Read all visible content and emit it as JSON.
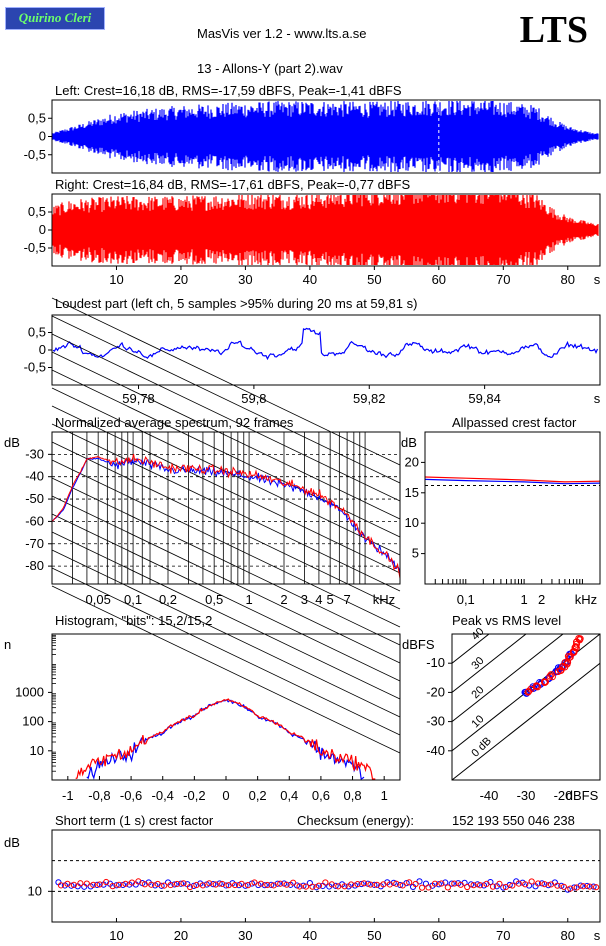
{
  "header": {
    "badge_text": "Quirino Cleri",
    "app_title": "MasVis ver 1.2 - www.lts.a.se",
    "logo": "LTS",
    "file_title": "13 - Allons-Y (part 2).wav"
  },
  "colors": {
    "left": "#0000ff",
    "right": "#ff0000",
    "background": "#ffffff",
    "badge": "#2b45b0",
    "badge_text": "#6cff6c"
  },
  "chart_data": [
    {
      "id": "left-waveform",
      "type": "line",
      "title": "Left: Crest=16,18 dB, RMS=-17,59 dBFS, Peak=-1,41 dBFS",
      "y_ticks": [
        "0,5",
        "0",
        "-0,5"
      ],
      "ylim": [
        -1,
        1
      ],
      "xlim": [
        0,
        85
      ],
      "series": [
        {
          "channel": "left",
          "envelope_x": [
            0,
            5,
            10,
            20,
            30,
            40,
            50,
            60,
            70,
            75,
            78,
            80,
            84
          ],
          "envelope_amp": [
            0.05,
            0.2,
            0.35,
            0.45,
            0.5,
            0.52,
            0.5,
            0.55,
            0.52,
            0.45,
            0.25,
            0.15,
            0.05
          ]
        }
      ],
      "marker_x": 60
    },
    {
      "id": "right-waveform",
      "type": "line",
      "title": "Right: Crest=16,84 dB, RMS=-17,61 dBFS, Peak=-0,77 dBFS",
      "y_ticks": [
        "0,5",
        "0",
        "-0,5"
      ],
      "ylim": [
        -1,
        1
      ],
      "xlim": [
        0,
        85
      ],
      "x_ticks": [
        "10",
        "20",
        "30",
        "40",
        "50",
        "60",
        "70",
        "80"
      ],
      "x_unit": "s",
      "series": [
        {
          "channel": "right",
          "envelope_x": [
            0,
            3,
            10,
            20,
            30,
            40,
            50,
            60,
            70,
            75,
            78,
            80,
            84
          ],
          "envelope_amp": [
            0.35,
            0.45,
            0.5,
            0.5,
            0.55,
            0.55,
            0.65,
            0.7,
            0.7,
            0.55,
            0.3,
            0.2,
            0.1
          ]
        }
      ]
    },
    {
      "id": "loudest-part",
      "type": "line",
      "title": "Loudest part (left  ch, 5 samples >95% during 20 ms at 59,81 s)",
      "y_ticks": [
        "0,5",
        "0",
        "-0,5"
      ],
      "ylim": [
        -1,
        1
      ],
      "xlim": [
        59.765,
        59.86
      ],
      "x_ticks": [
        "59,78",
        "59,8",
        "59,82",
        "59,84"
      ],
      "x_unit": "s",
      "series": [
        {
          "channel": "left"
        }
      ]
    },
    {
      "id": "spectrum",
      "type": "line",
      "title": "Normalized average spectrum, 92 frames",
      "y_unit": "dB",
      "y_ticks": [
        "-30",
        "-40",
        "-50",
        "-60",
        "-70",
        "-80"
      ],
      "ylim": [
        -88,
        -20
      ],
      "x_ticks": [
        "0,05",
        "0,1",
        "0,2",
        "0,5",
        "1",
        "2",
        "3",
        "4",
        "5",
        "7"
      ],
      "x_unit": "kHz",
      "x_scale": "log",
      "xlim": [
        0.02,
        20
      ],
      "series": [
        {
          "channel": "left",
          "x": [
            0.02,
            0.025,
            0.03,
            0.04,
            0.05,
            0.07,
            0.1,
            0.2,
            0.5,
            1,
            2,
            4,
            7,
            10,
            15,
            20
          ],
          "y": [
            -60,
            -55,
            -45,
            -32,
            -32,
            -35,
            -33,
            -37,
            -38,
            -40,
            -44,
            -49,
            -58,
            -68,
            -75,
            -82
          ]
        },
        {
          "channel": "right",
          "x": [
            0.02,
            0.025,
            0.03,
            0.04,
            0.05,
            0.07,
            0.1,
            0.2,
            0.5,
            1,
            2,
            4,
            7,
            10,
            15,
            20
          ],
          "y": [
            -60,
            -54,
            -44,
            -32,
            -31,
            -34,
            -32,
            -36,
            -37,
            -39,
            -43,
            -48,
            -57,
            -67,
            -75,
            -83
          ]
        }
      ]
    },
    {
      "id": "allpassed-crest",
      "type": "line",
      "title": "Allpassed crest factor",
      "y_unit": "dB",
      "y_ticks": [
        "20",
        "15",
        "10",
        "5"
      ],
      "ylim": [
        0,
        25
      ],
      "x_ticks": [
        "0,1",
        "1",
        "2"
      ],
      "x_unit": "kHz",
      "x_scale": "log",
      "xlim": [
        0.02,
        20
      ],
      "reference_y": 16.2,
      "series": [
        {
          "channel": "left",
          "x": [
            0.02,
            0.1,
            1,
            5,
            20
          ],
          "y": [
            17.2,
            17.0,
            16.8,
            16.5,
            16.6
          ]
        },
        {
          "channel": "right",
          "x": [
            0.02,
            0.1,
            1,
            5,
            20
          ],
          "y": [
            17.6,
            17.4,
            17.1,
            16.8,
            16.9
          ]
        }
      ]
    },
    {
      "id": "histogram",
      "type": "line",
      "title": "Histogram, \"bits\": 15,2/15,2",
      "y_unit": "n",
      "y_scale": "log",
      "y_ticks": [
        "1000",
        "100",
        "10"
      ],
      "ylim": [
        1,
        100000
      ],
      "x_ticks": [
        "-1",
        "-0,8",
        "-0,6",
        "-0,4",
        "-0,2",
        "0",
        "0,2",
        "0,4",
        "0,6",
        "0,8",
        "1"
      ],
      "xlim": [
        -1.1,
        1.1
      ],
      "series": [
        {
          "channel": "left",
          "x": [
            -0.88,
            -0.6,
            -0.4,
            -0.2,
            0,
            0.2,
            0.4,
            0.6,
            0.88
          ],
          "y": [
            1,
            8,
            40,
            150,
            550,
            150,
            40,
            8,
            1
          ]
        },
        {
          "channel": "right",
          "x": [
            -0.95,
            -0.6,
            -0.4,
            -0.2,
            0,
            0.2,
            0.4,
            0.6,
            0.95
          ],
          "y": [
            1,
            9,
            42,
            155,
            560,
            155,
            42,
            9,
            1
          ]
        }
      ]
    },
    {
      "id": "peak-vs-rms",
      "type": "scatter",
      "title": "Peak vs RMS level",
      "y_unit": "dBFS",
      "y_ticks": [
        "-10",
        "-20",
        "-30",
        "-40"
      ],
      "ylim": [
        -50,
        0
      ],
      "x_ticks": [
        "-40",
        "-30",
        "-20"
      ],
      "x_unit": "dBFS",
      "xlim": [
        -50,
        -10
      ],
      "crest_lines": [
        "40",
        "30",
        "20",
        "10",
        "0 dB"
      ],
      "series": [
        {
          "channel": "left",
          "x": [
            -30,
            -28,
            -26,
            -24,
            -22,
            -21,
            -20,
            -19,
            -18
          ],
          "y": [
            -20,
            -18.5,
            -17,
            -15,
            -13,
            -12,
            -11,
            -9.5,
            -7
          ]
        },
        {
          "channel": "right",
          "x": [
            -29,
            -27,
            -25,
            -23,
            -21,
            -20,
            -19,
            -18,
            -17,
            -16.5,
            -16,
            -15.5
          ],
          "y": [
            -19.5,
            -18,
            -16.5,
            -14.5,
            -12.5,
            -11,
            -10,
            -8,
            -6,
            -4.5,
            -3,
            -1.5
          ]
        }
      ]
    },
    {
      "id": "short-term-crest",
      "type": "scatter",
      "title": "Short term (1 s) crest factor",
      "checksum_label": "Checksum (energy):",
      "checksum_value": "152 193 550 046 238",
      "y_unit": "dB",
      "y_ticks": [
        "10"
      ],
      "ylim": [
        0,
        30
      ],
      "xlim": [
        0,
        85
      ],
      "x_ticks": [
        "10",
        "20",
        "30",
        "40",
        "50",
        "60",
        "70",
        "80"
      ],
      "x_unit": "s",
      "reference_lines": [
        10,
        20
      ],
      "series": [
        {
          "channel": "left",
          "points": "one per second, about 11-14 dB"
        },
        {
          "channel": "right",
          "points": "one per second, about 11-14 dB"
        }
      ]
    }
  ]
}
